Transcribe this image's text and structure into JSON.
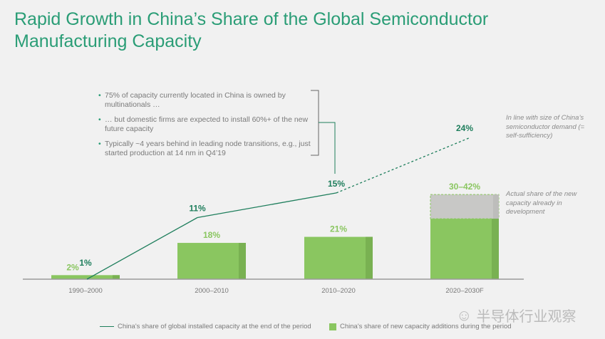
{
  "title": "Rapid Growth in China’s Share of the Global Semiconductor Manufacturing Capacity",
  "bullets": [
    "75% of capacity currently located in China is owned by multinationals …",
    "… but domestic firms are expected to install 60%+ of the new future capacity",
    "Typically ~4 years behind in leading node transitions, e.g., just started production at 14 nm in Q4’19"
  ],
  "notes": {
    "line_forecast": "In line with size of China’s semiconductor demand (= self-sufficiency)",
    "bar_forecast": "Actual share of the new capacity already in development"
  },
  "watermark": "半导体行业观察",
  "colors": {
    "line": "#1e7e5c",
    "bar": "#8ac660",
    "bar_shade": "#79b152",
    "range": "#c8c8c6",
    "title": "#2a9d76"
  },
  "chart_data": {
    "type": "bar",
    "categories": [
      "1990–2000",
      "2000–2010",
      "2010–2020",
      "2020–2030F"
    ],
    "series": [
      {
        "name": "China's share of new capacity additions during the period",
        "type": "bar",
        "values": [
          2,
          18,
          21,
          30
        ],
        "upper": [
          null,
          null,
          null,
          42
        ],
        "labels": [
          "2%",
          "18%",
          "21%",
          "30–42%"
        ]
      },
      {
        "name": "China's share of global installed capacity at the end of the period",
        "type": "line",
        "values": [
          1,
          11,
          15,
          24
        ],
        "labels": [
          "1%",
          "11%",
          "15%",
          "24%"
        ],
        "forecast_from_index": 2
      }
    ],
    "unit": "%"
  }
}
